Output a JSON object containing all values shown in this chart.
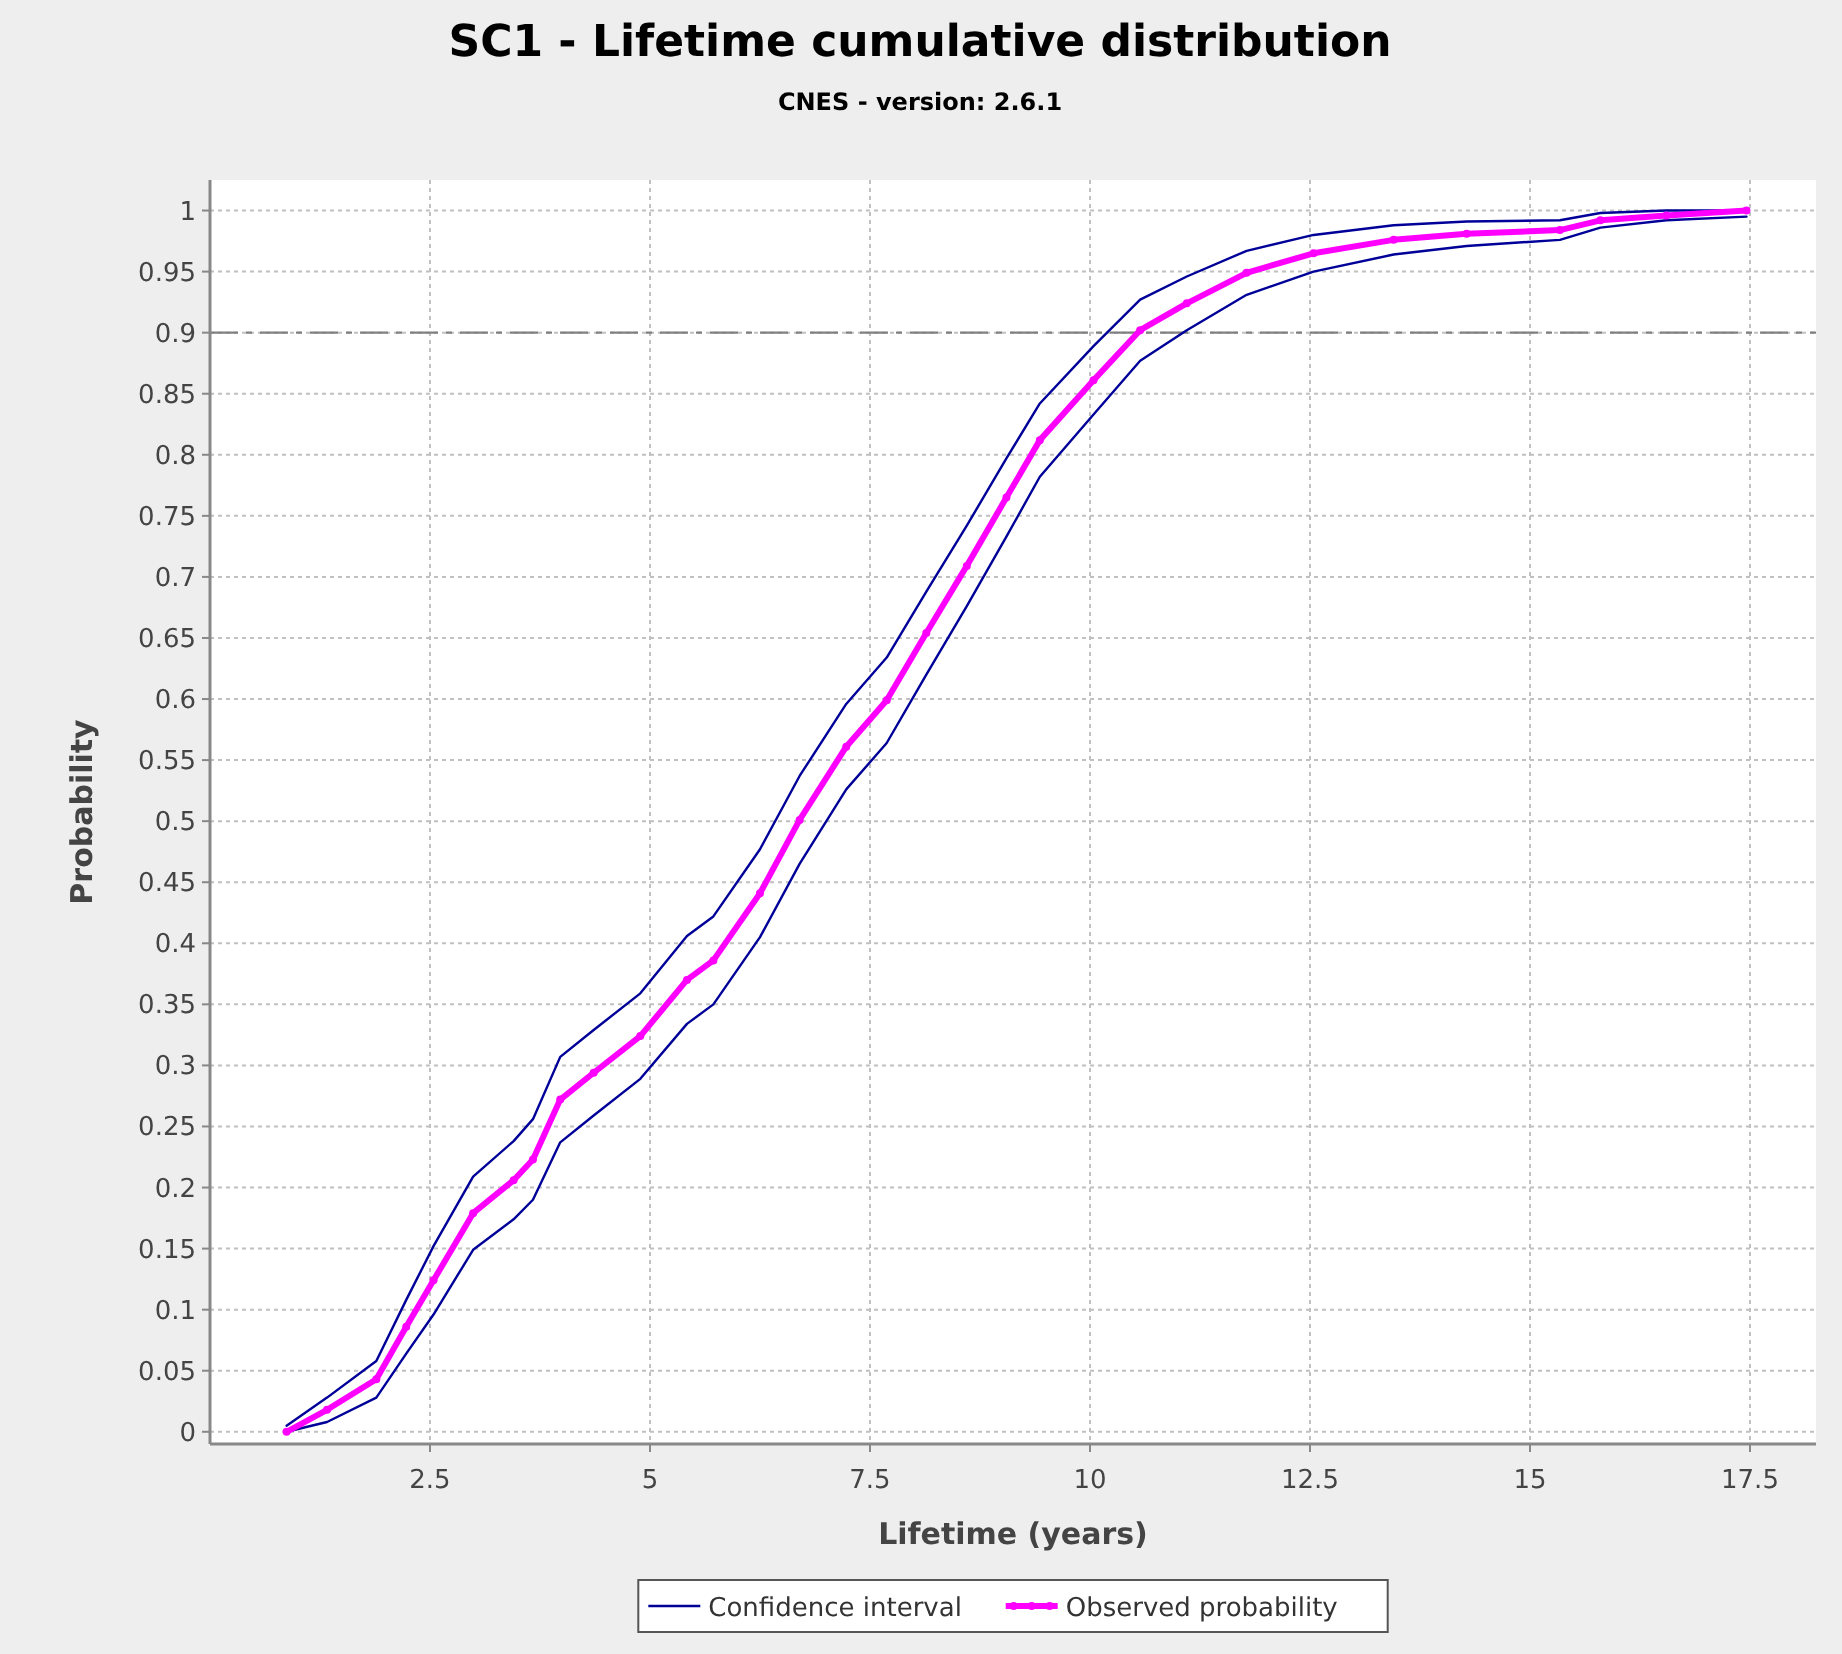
{
  "chart_data": {
    "type": "line",
    "title": "SC1 - Lifetime cumulative distribution",
    "subtitle": "CNES - version: 2.6.1",
    "xlabel": "Lifetime (years)",
    "ylabel": "Probability",
    "x": [
      0.87,
      1.33,
      1.89,
      2.23,
      2.54,
      2.99,
      3.45,
      3.67,
      3.98,
      4.36,
      4.89,
      5.42,
      5.72,
      6.25,
      6.7,
      7.23,
      7.69,
      8.14,
      8.6,
      9.05,
      9.43,
      10.04,
      10.57,
      11.1,
      11.78,
      12.54,
      13.45,
      14.28,
      15.34,
      15.8,
      16.55,
      17.46
    ],
    "series": [
      {
        "name": "Confidence interval",
        "color": "#000099",
        "marker": "none",
        "values": [
          0.005,
          0.028,
          0.058,
          0.108,
          0.152,
          0.209,
          0.238,
          0.256,
          0.307,
          0.329,
          0.359,
          0.406,
          0.422,
          0.477,
          0.537,
          0.596,
          0.634,
          0.688,
          0.742,
          0.797,
          0.842,
          0.889,
          0.927,
          0.946,
          0.967,
          0.98,
          0.988,
          0.991,
          0.992,
          0.998,
          1.0,
          1.0
        ]
      },
      {
        "color": "#000099",
        "marker": "none",
        "values": [
          0,
          0.008,
          0.028,
          0.064,
          0.096,
          0.149,
          0.174,
          0.19,
          0.237,
          0.259,
          0.289,
          0.334,
          0.35,
          0.405,
          0.465,
          0.526,
          0.564,
          0.62,
          0.676,
          0.733,
          0.782,
          0.833,
          0.877,
          0.902,
          0.931,
          0.95,
          0.964,
          0.971,
          0.976,
          0.986,
          0.992,
          0.995
        ]
      },
      {
        "name": "Observed probability",
        "color": "#ff00ff",
        "marker": "circle",
        "values": [
          0,
          0.018,
          0.043,
          0.086,
          0.124,
          0.179,
          0.206,
          0.223,
          0.272,
          0.294,
          0.324,
          0.37,
          0.386,
          0.441,
          0.501,
          0.561,
          0.599,
          0.654,
          0.709,
          0.765,
          0.812,
          0.861,
          0.902,
          0.924,
          0.949,
          0.965,
          0.976,
          0.981,
          0.984,
          0.992,
          0.996,
          1.0
        ]
      }
    ],
    "xlim": [
      0,
      18.25
    ],
    "xticks": [
      2.5,
      5,
      7.5,
      10,
      12.5,
      15,
      17.5
    ],
    "ylim": [
      -0.01,
      1.025
    ],
    "yticks": [
      0,
      0.05,
      0.1,
      0.15,
      0.2,
      0.25,
      0.3,
      0.35,
      0.4,
      0.45,
      0.5,
      0.55,
      0.6,
      0.65,
      0.7,
      0.75,
      0.8,
      0.85,
      0.9,
      0.95,
      1
    ],
    "ref_lines": [
      {
        "axis": "y",
        "value": 0.9,
        "color": "#808080",
        "line_style": "dashed"
      }
    ],
    "grid": true,
    "legend": "bottom",
    "line_style": "solid"
  }
}
